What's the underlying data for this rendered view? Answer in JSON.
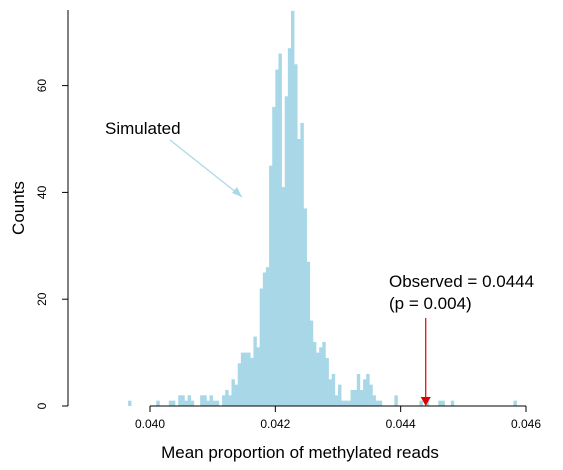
{
  "chart_data": {
    "type": "bar",
    "title": "",
    "xlabel": "Mean proportion of methylated reads",
    "ylabel": "Counts",
    "xlim": [
      0.039,
      0.0462
    ],
    "ylim": [
      0,
      74
    ],
    "x_ticks": [
      {
        "value": 0.04,
        "label": "0.040"
      },
      {
        "value": 0.042,
        "label": "0.042"
      },
      {
        "value": 0.044,
        "label": "0.044"
      },
      {
        "value": 0.046,
        "label": "0.046"
      }
    ],
    "y_ticks": [
      {
        "value": 0,
        "label": "0"
      },
      {
        "value": 20,
        "label": "20"
      },
      {
        "value": 40,
        "label": "40"
      },
      {
        "value": 60,
        "label": "60"
      }
    ],
    "bar_color": "#a8d8e8",
    "bin_width": 5e-05,
    "bins_start": [
      0.03965,
      0.0397,
      0.03975,
      0.0398,
      0.03985,
      0.0399,
      0.03995,
      0.04,
      0.04005,
      0.0401,
      0.04015,
      0.0402,
      0.04025,
      0.0403,
      0.04035,
      0.0404,
      0.04045,
      0.0405,
      0.04055,
      0.0406,
      0.04065,
      0.0407,
      0.04075,
      0.0408,
      0.04085,
      0.0409,
      0.04095,
      0.041,
      0.04105,
      0.0411,
      0.04115,
      0.0412,
      0.04125,
      0.0413,
      0.04135,
      0.0414,
      0.04145,
      0.0415,
      0.04155,
      0.0416,
      0.04165,
      0.0417,
      0.04175,
      0.0418,
      0.04185,
      0.0419,
      0.04195,
      0.042,
      0.04205,
      0.0421,
      0.04215,
      0.0422,
      0.04225,
      0.0423,
      0.04235,
      0.0424,
      0.04245,
      0.0425,
      0.04255,
      0.0426,
      0.04265,
      0.0427,
      0.04275,
      0.0428,
      0.04285,
      0.0429,
      0.04295,
      0.043,
      0.04305,
      0.0431,
      0.04315,
      0.0432,
      0.04325,
      0.0433,
      0.04335,
      0.0434,
      0.04345,
      0.0435,
      0.04355,
      0.0436,
      0.04365,
      0.0437,
      0.04375,
      0.0438,
      0.04385,
      0.0439,
      0.04395,
      0.044,
      0.04405,
      0.0441,
      0.04415,
      0.0442,
      0.04425,
      0.0443,
      0.04435,
      0.0444,
      0.04445,
      0.0445,
      0.04455,
      0.0446,
      0.04465,
      0.0447,
      0.04475,
      0.0448,
      0.04485,
      0.0449,
      0.04495,
      0.045,
      0.04505,
      0.0451,
      0.04515,
      0.0452,
      0.04525,
      0.0453,
      0.04535,
      0.0454,
      0.04545,
      0.0455,
      0.04555,
      0.0456,
      0.04565,
      0.0457,
      0.04575,
      0.0458,
      0.04585,
      0.0459
    ],
    "counts": [
      1,
      0,
      0,
      0,
      0,
      0,
      0,
      0,
      0,
      1,
      0,
      0,
      0,
      1,
      1,
      0,
      2,
      2,
      1,
      2,
      1,
      0,
      0,
      2,
      2,
      1,
      2,
      1,
      1,
      0,
      2,
      3,
      2,
      5,
      4,
      8,
      10,
      10,
      10,
      9,
      13,
      11,
      22,
      25,
      26,
      45,
      56,
      63,
      66,
      41,
      58,
      67,
      74,
      64,
      50,
      53,
      37,
      27,
      16,
      12,
      10,
      11,
      12,
      9,
      5,
      6,
      2,
      4,
      1,
      1,
      1,
      3,
      3,
      6,
      3,
      5,
      6,
      4,
      2,
      1,
      1,
      0,
      0,
      0,
      0,
      2,
      0,
      0,
      0,
      0,
      0,
      0,
      0,
      1,
      0,
      1,
      0,
      0,
      0,
      1,
      1,
      0,
      0,
      1,
      0,
      0,
      0,
      0,
      0,
      0,
      0,
      0,
      0,
      0,
      0,
      0,
      0,
      0,
      0,
      0,
      0,
      0,
      0,
      1,
      0
    ],
    "annotations": [
      {
        "text": "Simulated"
      },
      {
        "text": "Observed = 0.0444",
        "text2": "(p = 0.004)",
        "x": 0.0444
      }
    ]
  }
}
